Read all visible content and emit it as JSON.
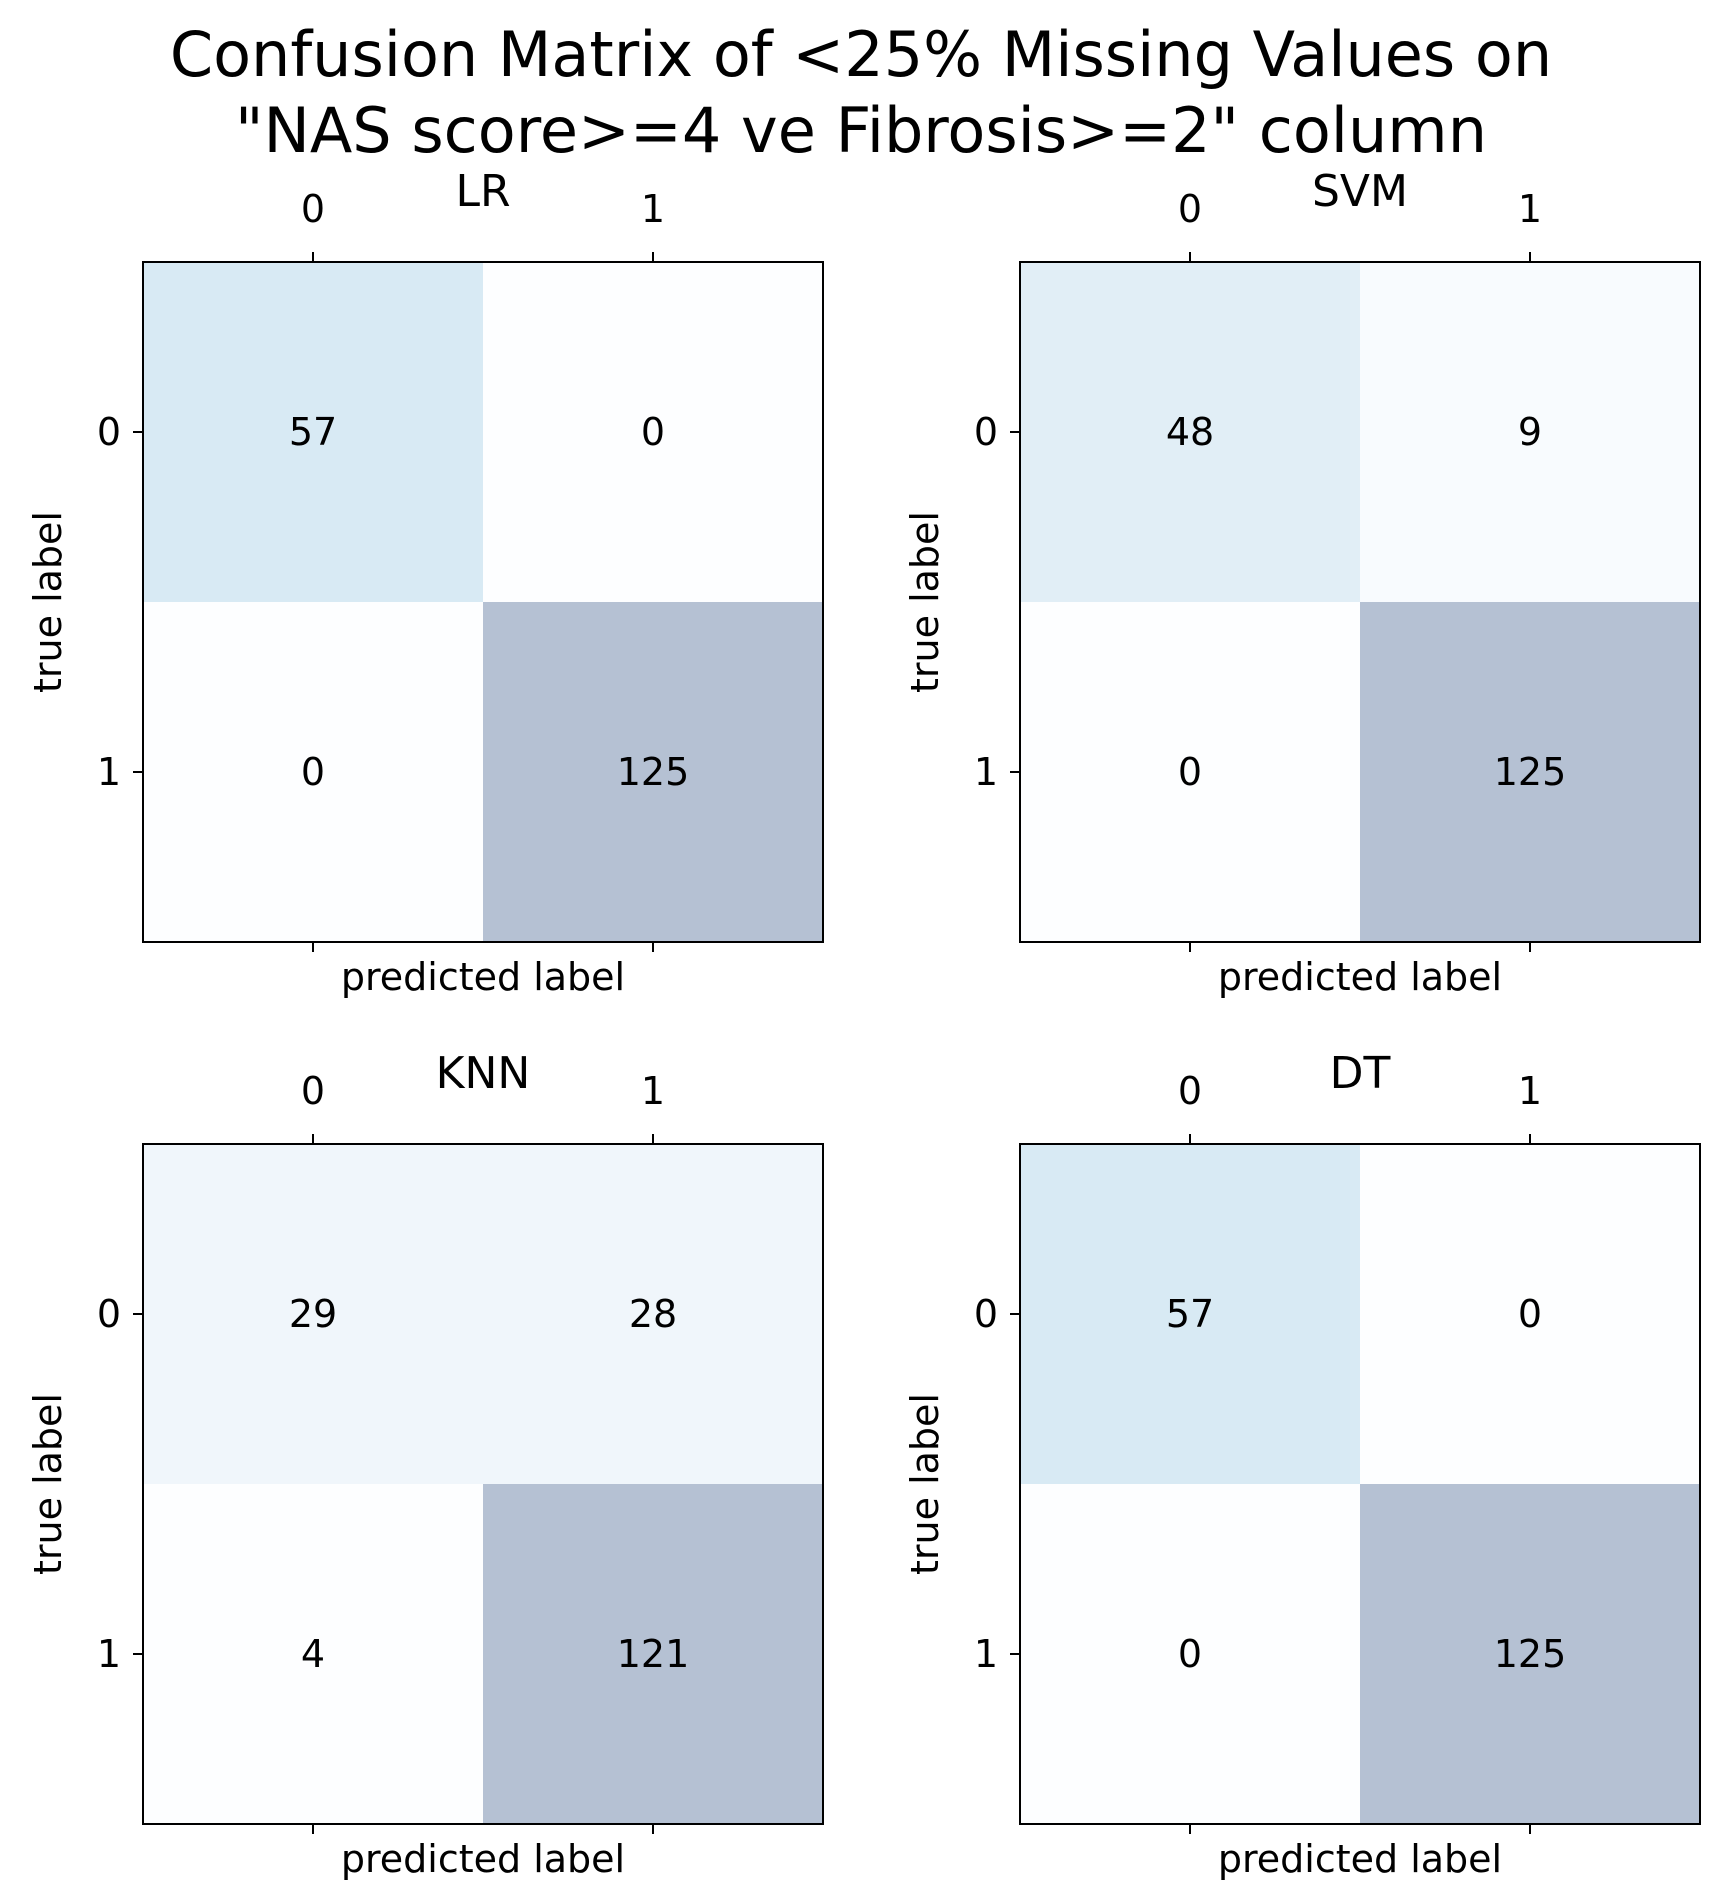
{
  "title_lines": [
    "Confusion Matrix of <25% Missing Values on",
    "\"NAS score>=4 ve Fibrosis>=2\" column"
  ],
  "chart_data": [
    {
      "type": "heatmap",
      "title": "LR",
      "xlabel": "predicted label",
      "ylabel": "true label",
      "x_ticks": [
        "0",
        "1"
      ],
      "y_ticks": [
        "0",
        "1"
      ],
      "matrix": [
        [
          57,
          0
        ],
        [
          0,
          125
        ]
      ],
      "colormap": "Blues",
      "alpha": 0.3
    },
    {
      "type": "heatmap",
      "title": "SVM",
      "xlabel": "predicted label",
      "ylabel": "true label",
      "x_ticks": [
        "0",
        "1"
      ],
      "y_ticks": [
        "0",
        "1"
      ],
      "matrix": [
        [
          48,
          9
        ],
        [
          0,
          125
        ]
      ],
      "colormap": "Blues",
      "alpha": 0.3
    },
    {
      "type": "heatmap",
      "title": "KNN",
      "xlabel": "predicted label",
      "ylabel": "true label",
      "x_ticks": [
        "0",
        "1"
      ],
      "y_ticks": [
        "0",
        "1"
      ],
      "matrix": [
        [
          29,
          28
        ],
        [
          4,
          121
        ]
      ],
      "colormap": "Blues",
      "alpha": 0.3
    },
    {
      "type": "heatmap",
      "title": "DT",
      "xlabel": "predicted label",
      "ylabel": "true label",
      "x_ticks": [
        "0",
        "1"
      ],
      "y_ticks": [
        "0",
        "1"
      ],
      "matrix": [
        [
          57,
          0
        ],
        [
          0,
          125
        ]
      ],
      "colormap": "Blues",
      "alpha": 0.3
    }
  ]
}
